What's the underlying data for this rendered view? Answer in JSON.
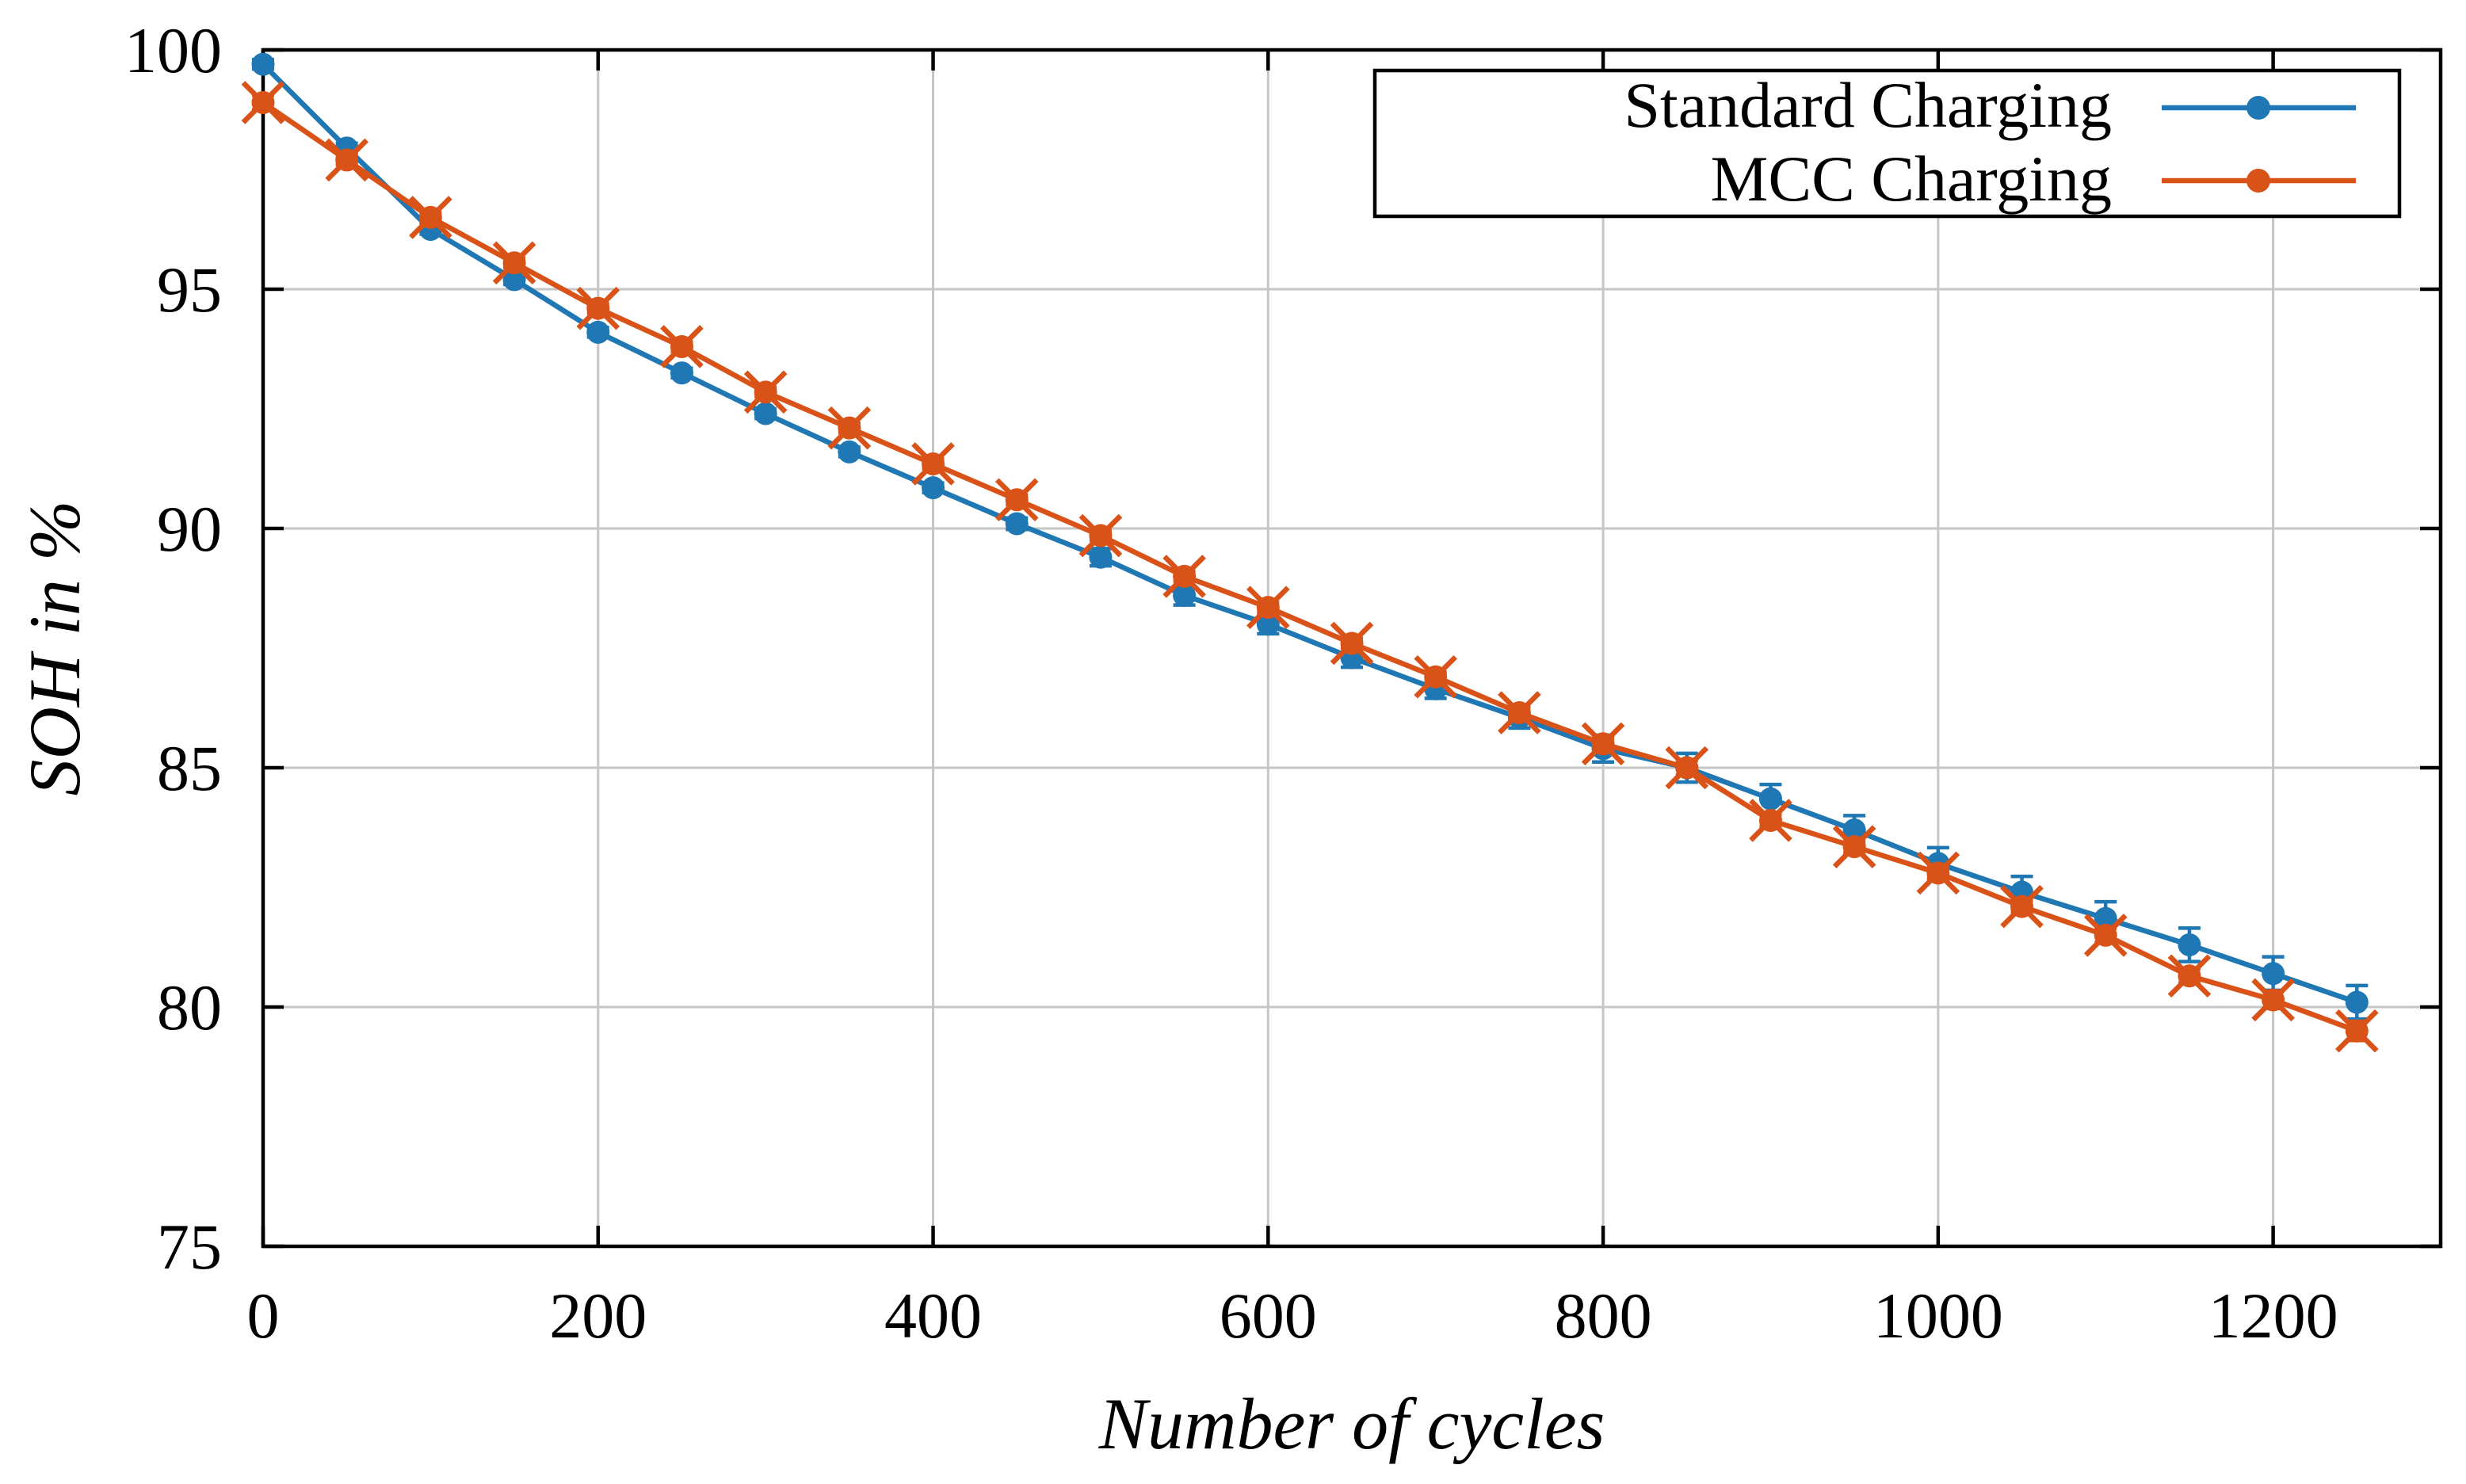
{
  "chart_data": {
    "type": "line",
    "title": "",
    "xlabel": "Number of cycles",
    "ylabel": "SOH in %",
    "xlim": [
      0,
      1300
    ],
    "ylim": [
      75,
      100
    ],
    "xticks": [
      0,
      200,
      400,
      600,
      800,
      1000,
      1200
    ],
    "yticks": [
      75,
      80,
      85,
      90,
      95,
      100
    ],
    "grid": true,
    "grid_color": "#c6c6c6",
    "frame_color": "#000000",
    "background": "#ffffff",
    "legend_position": "top-right",
    "x": [
      0,
      50,
      100,
      150,
      200,
      250,
      300,
      350,
      400,
      450,
      500,
      550,
      600,
      650,
      700,
      750,
      800,
      850,
      900,
      950,
      1000,
      1050,
      1100,
      1150,
      1200,
      1250
    ],
    "series": [
      {
        "name": "Standard Charging",
        "color": "#1f77b4",
        "marker": "circle",
        "values": [
          99.7,
          97.95,
          96.25,
          95.2,
          94.1,
          93.25,
          92.4,
          91.6,
          90.85,
          90.1,
          89.4,
          88.6,
          88.0,
          87.3,
          86.65,
          86.05,
          85.4,
          85.0,
          84.35,
          83.7,
          83.0,
          82.4,
          81.85,
          81.3,
          80.7,
          80.1
        ],
        "errors": [
          0.1,
          0.1,
          0.1,
          0.1,
          0.1,
          0.1,
          0.1,
          0.1,
          0.1,
          0.12,
          0.18,
          0.2,
          0.2,
          0.2,
          0.2,
          0.22,
          0.28,
          0.3,
          0.3,
          0.3,
          0.33,
          0.33,
          0.35,
          0.35,
          0.35,
          0.35
        ]
      },
      {
        "name": "MCC Charging",
        "color": "#d95319",
        "marker": "circle-x",
        "values": [
          98.9,
          97.7,
          96.5,
          95.55,
          94.6,
          93.8,
          92.85,
          92.1,
          91.35,
          90.6,
          89.85,
          89.0,
          88.35,
          87.6,
          86.9,
          86.15,
          85.5,
          85.0,
          83.9,
          83.35,
          82.8,
          82.1,
          81.5,
          80.65,
          80.15,
          79.5
        ],
        "errors": [
          0.15,
          0.1,
          0.1,
          0.1,
          0.1,
          0.1,
          0.1,
          0.1,
          0.1,
          0.1,
          0.1,
          0.1,
          0.1,
          0.1,
          0.1,
          0.1,
          0.12,
          0.15,
          0.12,
          0.12,
          0.12,
          0.12,
          0.15,
          0.15,
          0.18,
          0.2
        ]
      }
    ]
  }
}
